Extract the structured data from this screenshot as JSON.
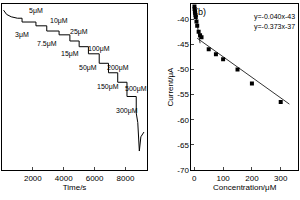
{
  "chart_data": [
    {
      "type": "line",
      "x_label": "Time/s",
      "x": [
        100,
        300,
        600,
        1000,
        1300,
        1300,
        2200,
        2200,
        2900,
        2900,
        3700,
        3700,
        4400,
        4400,
        5000,
        5000,
        5600,
        5600,
        6300,
        6300,
        6900,
        6900,
        7500,
        7500,
        8100,
        8100,
        8700,
        8700,
        8800,
        8900,
        9000,
        9200
      ],
      "values": [
        -36.3,
        -37.2,
        -37.7,
        -38.0,
        -38.0,
        -38.8,
        -38.8,
        -39.6,
        -39.6,
        -40.7,
        -40.7,
        -41.5,
        -41.5,
        -42.8,
        -42.8,
        -44.0,
        -44.0,
        -45.5,
        -45.5,
        -47.5,
        -47.5,
        -49.5,
        -49.5,
        -51.5,
        -51.5,
        -54.5,
        -54.5,
        -58.0,
        -60.0,
        -66.0,
        -63.0,
        -62.0
      ],
      "color": "#000000",
      "xlim": [
        0,
        9400
      ],
      "xticks": [
        2000,
        4000,
        6000,
        8000
      ],
      "ylim": [
        -70,
        -35
      ],
      "tick_labels": "x",
      "annotations": [
        {
          "text": "3μM",
          "x": 1300,
          "y": -41.5
        },
        {
          "text": "5μM",
          "x": 2200,
          "y": -36.5
        },
        {
          "text": "7.5μM",
          "x": 2900,
          "y": -43.5
        },
        {
          "text": "10μM",
          "x": 3700,
          "y": -38.5
        },
        {
          "text": "15μM",
          "x": 4400,
          "y": -45.5
        },
        {
          "text": "25μM",
          "x": 5000,
          "y": -41.0
        },
        {
          "text": "50μM",
          "x": 5600,
          "y": -48.5
        },
        {
          "text": "100μM",
          "x": 6300,
          "y": -44.5
        },
        {
          "text": "150μM",
          "x": 6900,
          "y": -52.5
        },
        {
          "text": "200μM",
          "x": 7500,
          "y": -48.5
        },
        {
          "text": "300μM",
          "x": 8100,
          "y": -57.5
        },
        {
          "text": "500μM",
          "x": 8700,
          "y": -53.0
        }
      ]
    },
    {
      "type": "scatter",
      "label": "(b)",
      "x_label": "Concentration/μM",
      "y_label": "Current/μA",
      "x": [
        0.5,
        1,
        2,
        3,
        4,
        5,
        7.5,
        10,
        15,
        20,
        25,
        50,
        75,
        100,
        150,
        200,
        300
      ],
      "values": [
        -37.5,
        -38.0,
        -38.5,
        -38.8,
        -39.2,
        -39.6,
        -40.5,
        -41.3,
        -42.5,
        -43.2,
        -43.6,
        -46.0,
        -47.0,
        -48.0,
        -50.0,
        -52.8,
        -56.5
      ],
      "color": "#000000",
      "marker": "square",
      "fits": [
        {
          "x": [
            0,
            20
          ],
          "values": [
            -37.3,
            -44.8
          ],
          "color": "#333333"
        },
        {
          "x": [
            10,
            330
          ],
          "values": [
            -43.8,
            -56.9
          ],
          "color": "#333333"
        }
      ],
      "xlim": [
        -10,
        360
      ],
      "xticks": [
        0,
        100,
        200,
        300
      ],
      "ylim": [
        -70,
        -37
      ],
      "yticks": [
        -40,
        -45,
        -50,
        -55,
        -60,
        -65,
        -70
      ],
      "annotations": [
        {
          "text": "y=-0.040x-43",
          "x": 355,
          "y": -39.5
        },
        {
          "text": "y=-0.373x-37",
          "x": 355,
          "y": -41.5
        }
      ]
    }
  ]
}
